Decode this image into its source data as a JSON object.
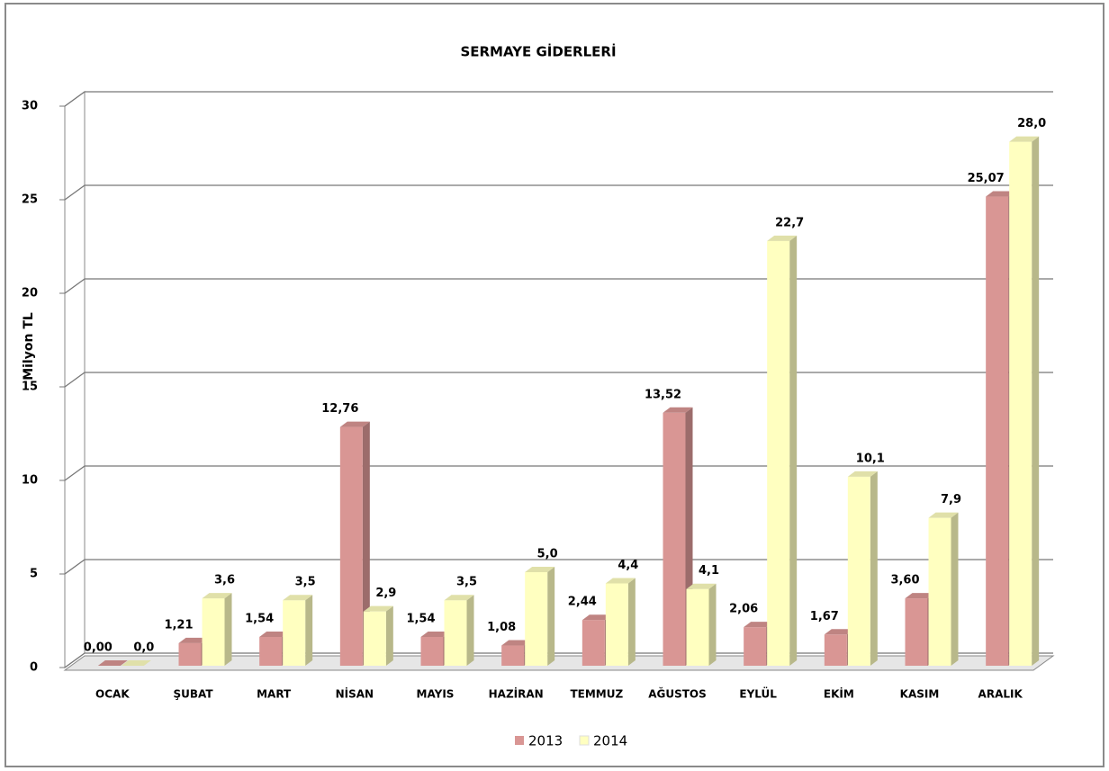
{
  "chart_data": {
    "type": "bar3d",
    "title": "SERMAYE GİDERLERİ",
    "y_label": "Milyon TL",
    "categories": [
      "OCAK",
      "ŞUBAT",
      "MART",
      "NİSAN",
      "MAYIS",
      "HAZİRAN",
      "TEMMUZ",
      "AĞUSTOS",
      "EYLÜL",
      "EKİM",
      "KASIM",
      "ARALIK"
    ],
    "series": [
      {
        "name": "2013",
        "color": "#d99694",
        "values": [
          0.0,
          1.21,
          1.54,
          12.76,
          1.54,
          1.08,
          2.44,
          13.52,
          2.06,
          1.67,
          3.6,
          25.07
        ],
        "value_labels": [
          "0,00",
          "1,21",
          "1,54",
          "12,76",
          "1,54",
          "1,08",
          "2,44",
          "13,52",
          "2,06",
          "1,67",
          "3,60",
          "25,07"
        ]
      },
      {
        "name": "2014",
        "color": "#ffffc0",
        "values": [
          0.0,
          3.6,
          3.5,
          2.9,
          3.5,
          5.0,
          4.4,
          4.1,
          22.7,
          10.1,
          7.9,
          28.0
        ],
        "value_labels": [
          "0,0",
          "3,6",
          "3,5",
          "2,9",
          "3,5",
          "5,0",
          "4,4",
          "4,1",
          "22,7",
          "10,1",
          "7,9",
          "28,0"
        ]
      }
    ],
    "ylim": [
      0,
      30
    ],
    "yticks": [
      0,
      5,
      10,
      15,
      20,
      25,
      30
    ],
    "grid": true,
    "legend": "bottom"
  }
}
